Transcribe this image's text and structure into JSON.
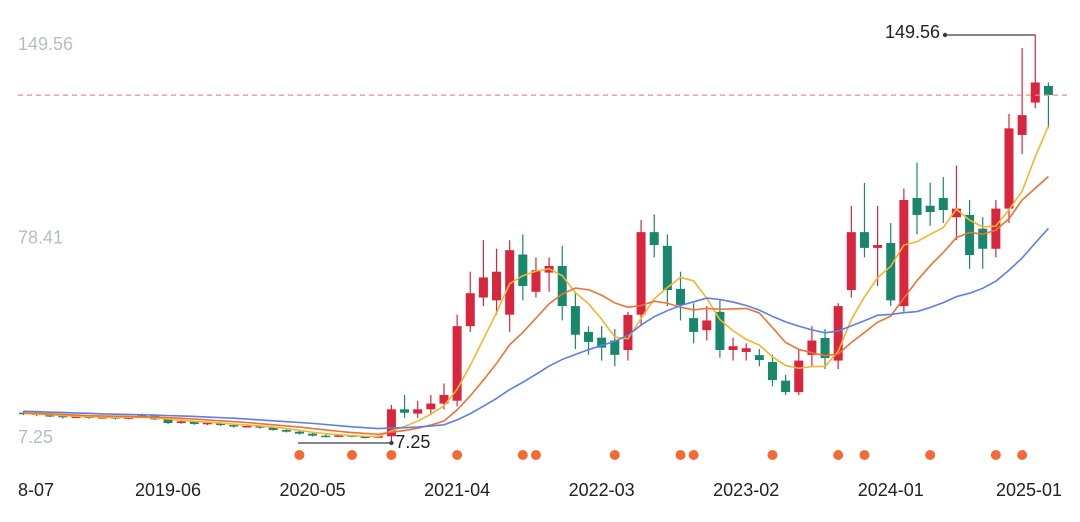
{
  "chart_data": {
    "type": "candlestick",
    "categories": [
      "8-07",
      null,
      null,
      null,
      null,
      null,
      null,
      null,
      null,
      null,
      null,
      "2019-06",
      null,
      null,
      null,
      null,
      null,
      null,
      null,
      null,
      null,
      null,
      "2020-05",
      null,
      null,
      null,
      null,
      null,
      null,
      null,
      null,
      null,
      null,
      "2021-04",
      null,
      null,
      null,
      null,
      null,
      null,
      null,
      null,
      null,
      null,
      "2022-03",
      null,
      null,
      null,
      null,
      null,
      null,
      null,
      null,
      null,
      null,
      "2023-02",
      null,
      null,
      null,
      null,
      null,
      null,
      null,
      null,
      null,
      null,
      "2024-01",
      null,
      null,
      null,
      null,
      null,
      null,
      null,
      null,
      null,
      null,
      null,
      "2025-01"
    ],
    "open": [
      17.8,
      17.5,
      17.0,
      16.8,
      16.2,
      16.5,
      16.0,
      16.3,
      15.8,
      16.2,
      16.8,
      15.5,
      14.2,
      14.8,
      13.9,
      14.3,
      13.5,
      13.0,
      13.2,
      12.6,
      11.8,
      11.2,
      10.5,
      9.8,
      9.6,
      9.9,
      9.5,
      9.3,
      9.6,
      19.0,
      17.5,
      19,
      21,
      22,
      48,
      58,
      57,
      52,
      73,
      60,
      66.7,
      69,
      55,
      46,
      44,
      43,
      39.7,
      52,
      80.8,
      76,
      61,
      50.8,
      46.6,
      53,
      39.7,
      39,
      37.9,
      35.5,
      29,
      25,
      38,
      43.9,
      36,
      60.6,
      80.8,
      75.3,
      77,
      55,
      92.7,
      90,
      92.7,
      86,
      86.8,
      82,
      75,
      89,
      114.7,
      126,
      131.8
    ],
    "high": [
      18.5,
      18.0,
      17.6,
      17.2,
      17.0,
      16.9,
      16.8,
      16.6,
      16.6,
      17.5,
      17.1,
      15.8,
      15.2,
      15.0,
      14.7,
      14.5,
      13.8,
      13.6,
      13.4,
      12.9,
      12.0,
      11.5,
      10.8,
      10.2,
      10.3,
      10.1,
      9.8,
      9.9,
      20.5,
      24,
      22,
      24,
      28,
      52,
      67,
      78,
      75,
      78,
      80,
      72,
      72,
      76,
      60,
      48,
      48,
      47,
      53,
      85,
      87,
      80,
      67,
      56,
      55,
      57,
      44,
      42,
      40,
      38,
      31,
      40,
      48,
      47,
      56,
      90,
      98,
      90,
      84,
      96,
      105,
      98,
      100,
      104,
      92,
      86,
      92,
      122,
      145,
      149.56,
      133
    ],
    "low": [
      17.0,
      16.6,
      16.3,
      15.8,
      15.9,
      15.6,
      15.7,
      15.4,
      15.5,
      16.0,
      15.2,
      13.9,
      14.0,
      13.6,
      13.5,
      13.2,
      12.6,
      12.7,
      12.2,
      11.5,
      10.9,
      10.2,
      9.5,
      9.2,
      9.4,
      9.2,
      8.9,
      9.0,
      7.25,
      16,
      16,
      17,
      19,
      20,
      46,
      55,
      52,
      46,
      57,
      58,
      60,
      50,
      40,
      38,
      36,
      34,
      36,
      48,
      72,
      55,
      50,
      42,
      43,
      37,
      36,
      36,
      34,
      27,
      24,
      24,
      34,
      33,
      33,
      58,
      72,
      62,
      55,
      53,
      80,
      83,
      84,
      78,
      68,
      68,
      72,
      84,
      108,
      124,
      117
    ],
    "close": [
      17.5,
      17.0,
      16.8,
      16.2,
      16.5,
      16.0,
      16.3,
      15.8,
      16.2,
      16.8,
      15.5,
      14.2,
      14.8,
      13.9,
      14.3,
      13.5,
      13.0,
      13.2,
      12.6,
      11.8,
      11.2,
      10.5,
      9.8,
      9.6,
      9.9,
      9.5,
      9.3,
      9.6,
      19.0,
      17.8,
      19.0,
      21,
      24,
      48,
      59.5,
      65,
      67,
      74.5,
      62,
      67.5,
      69,
      55,
      45,
      42.5,
      40.5,
      38,
      51.9,
      80.8,
      76.3,
      60.6,
      55.4,
      46,
      50,
      39.7,
      41,
      40.3,
      36.2,
      29.2,
      25,
      36,
      43,
      36.9,
      55,
      80.8,
      75.3,
      76.3,
      57,
      92,
      86.8,
      87.8,
      88.5,
      89,
      72.8,
      75,
      89,
      117,
      121.6,
      133,
      128.6
    ],
    "up_color": "#d7263d",
    "down_color": "#19876b",
    "ma_lines": [
      {
        "color": "#f5b52e",
        "values": [
          17.6,
          17.3,
          17.1,
          16.8,
          16.6,
          16.4,
          16.3,
          16.2,
          16.2,
          16.2,
          16.0,
          15.6,
          15.2,
          14.8,
          14.5,
          14.2,
          13.8,
          13.5,
          13.2,
          12.8,
          12.3,
          11.7,
          11.0,
          10.5,
          10.1,
          9.8,
          9.6,
          9.5,
          11.5,
          13.0,
          14.9,
          17.3,
          20.2,
          26.0,
          34.3,
          43.5,
          52.7,
          62.8,
          65.6,
          67.2,
          68.0,
          65.6,
          59.7,
          55.8,
          50.4,
          44.2,
          43.6,
          50.7,
          57.5,
          61.5,
          65.0,
          63.8,
          57.7,
          50.3,
          46.4,
          43.4,
          41.4,
          37.3,
          34.3,
          33.3,
          33.9,
          34.0,
          39.2,
          50.3,
          58.2,
          64.9,
          68.9,
          76.3,
          77.5,
          80.0,
          82.4,
          88.8,
          85.0,
          82.6,
          82.9,
          88.6,
          95.1,
          107.1,
          117.8
        ]
      },
      {
        "color": "#f07132",
        "values": [
          17.8,
          17.6,
          17.4,
          17.2,
          17.0,
          16.8,
          16.7,
          16.6,
          16.5,
          16.4,
          16.3,
          16.1,
          15.9,
          15.6,
          15.3,
          15.0,
          14.7,
          14.4,
          14.0,
          13.6,
          13.2,
          12.8,
          12.3,
          11.8,
          11.3,
          10.9,
          10.6,
          10.3,
          11.0,
          11.6,
          12.4,
          13.5,
          14.9,
          18.8,
          23.7,
          29.2,
          35.0,
          41.5,
          45.8,
          50.8,
          55.8,
          59.2,
          61.3,
          60.7,
          58.8,
          56.1,
          54.6,
          55.2,
          56.7,
          56.0,
          54.6,
          53.7,
          54.2,
          53.9,
          54.0,
          54.2,
          52.6,
          47.5,
          42.3,
          39.9,
          38.7,
          37.7,
          38.3,
          42.3,
          45.8,
          49.4,
          51.5,
          57.8,
          63.9,
          69.1,
          73.7,
          78.9,
          80.7,
          80.1,
          81.5,
          85.5,
          92.0,
          96.1,
          100.2
        ]
      },
      {
        "color": "#5b7fe6",
        "values": [
          18.3,
          18.2,
          18.0,
          17.9,
          17.7,
          17.6,
          17.4,
          17.3,
          17.2,
          17.1,
          17.0,
          16.8,
          16.7,
          16.5,
          16.3,
          16.1,
          15.9,
          15.6,
          15.3,
          15.0,
          14.7,
          14.4,
          14.1,
          13.7,
          13.3,
          12.9,
          12.6,
          12.3,
          12.5,
          12.6,
          12.8,
          13.2,
          13.6,
          15.3,
          17.5,
          20.1,
          22.8,
          25.9,
          28.4,
          31.2,
          34.1,
          36.4,
          38.1,
          39.8,
          41.3,
          42.7,
          44.8,
          48.4,
          51.3,
          53.4,
          55.2,
          56.5,
          57.8,
          57.3,
          56.4,
          55.2,
          53.6,
          51.4,
          49.5,
          48.0,
          46.7,
          45.7,
          46.3,
          48.1,
          49.9,
          51.8,
          52.1,
          52.7,
          53.1,
          54.5,
          56.2,
          58.3,
          59.5,
          61.2,
          63.7,
          67.5,
          71.8,
          77.0,
          82.1
        ]
      }
    ],
    "event_index": [
      21,
      25,
      28,
      33,
      38,
      39,
      45,
      50,
      51,
      57,
      62,
      64,
      69,
      74,
      76
    ],
    "event_color": "#f46a36",
    "price_line": true,
    "price_line_color": "#f08a8a",
    "max_label": 149.56,
    "min_label": 7.25,
    "ylim": [
      7.25,
      149.56
    ],
    "yticks": [
      149.56,
      78.41,
      7.25
    ]
  }
}
